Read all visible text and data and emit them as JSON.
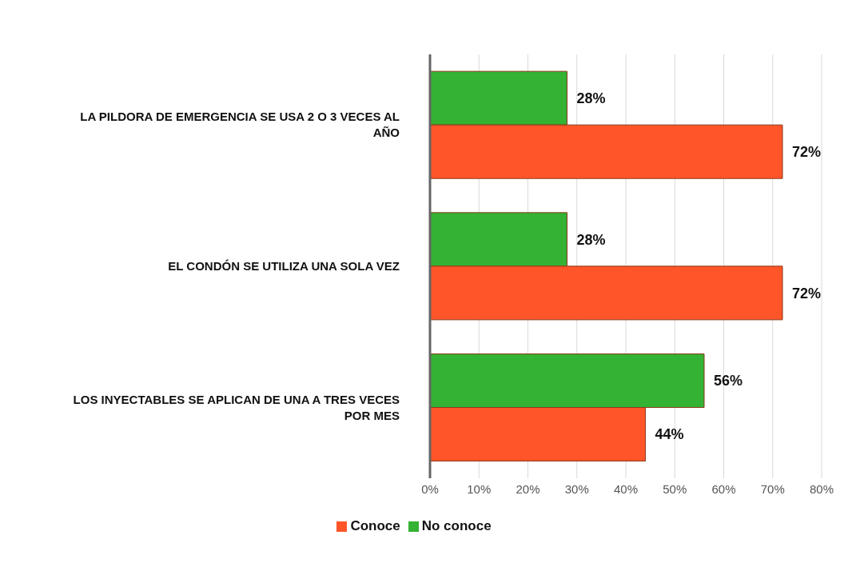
{
  "chart_data": {
    "type": "bar",
    "orientation": "horizontal",
    "categories": [
      "LA PILDORA DE EMERGENCIA SE USA 2 O 3 VECES AL AÑO",
      "EL CONDÓN SE UTILIZA UNA SOLA VEZ",
      "LOS INYECTABLES SE APLICAN DE UNA A TRES VECES POR MES"
    ],
    "series": [
      {
        "name": "No conoce",
        "color": "#33b233",
        "values": [
          28,
          28,
          56
        ],
        "value_labels": [
          "28%",
          "28%",
          "56%"
        ]
      },
      {
        "name": "Conoce",
        "color": "#ff5528",
        "values": [
          72,
          72,
          44
        ],
        "value_labels": [
          "72%",
          "72%",
          "44%"
        ]
      }
    ],
    "xlim": [
      0,
      80
    ],
    "xticks": [
      {
        "value": 0,
        "label": "0%"
      },
      {
        "value": 10,
        "label": "10%"
      },
      {
        "value": 20,
        "label": "20%"
      },
      {
        "value": 30,
        "label": "30%"
      },
      {
        "value": 40,
        "label": "40%"
      },
      {
        "value": 50,
        "label": "50%"
      },
      {
        "value": 60,
        "label": "60%"
      },
      {
        "value": 70,
        "label": "70%"
      },
      {
        "value": 80,
        "label": "80%"
      }
    ],
    "grid": "x",
    "legend": "bottom"
  }
}
